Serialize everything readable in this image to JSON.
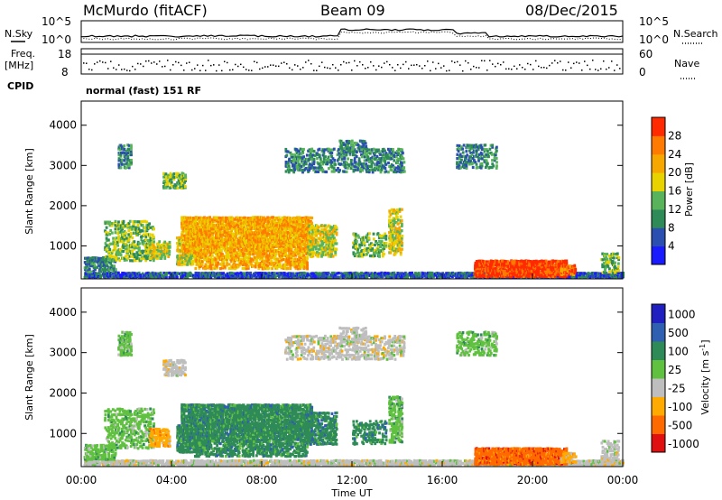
{
  "header": {
    "station": "McMurdo (fitACF)",
    "beam": "Beam 09",
    "date": "08/Dec/2015"
  },
  "strips": {
    "nsky_label": "N.Sky",
    "nsearch_label": "N.Search",
    "noise_ticks_left": [
      "10^5",
      "10^0"
    ],
    "noise_ticks_right": [
      "10^5",
      "10^0"
    ],
    "freq_label": "Freq.",
    "freq_unit": "[MHz]",
    "freq_ticks": [
      "18",
      "8"
    ],
    "nave_label": "Nave",
    "nave_ticks": [
      "60",
      "0"
    ],
    "cpid_label": "CPID",
    "cpid_text": "normal (fast) 151 RF"
  },
  "colors": {
    "power": [
      "#1a1aff",
      "#2a4fb0",
      "#2e8b57",
      "#58b35a",
      "#e8d200",
      "#f6a800",
      "#ff7a00",
      "#ff2a00"
    ],
    "velocity": [
      "#e01010",
      "#ff6a00",
      "#ffaa00",
      "#bebebe",
      "#60c040",
      "#2e8b57",
      "#2f5fb0",
      "#2020c0"
    ]
  },
  "chart_data": [
    {
      "type": "heatmap",
      "name": "power",
      "ylabel": "Slant Range [km]",
      "ylim": [
        180,
        4600
      ],
      "yticks": [
        "1000",
        "2000",
        "3000",
        "4000"
      ],
      "ytick_values": [
        1000,
        2000,
        3000,
        4000
      ],
      "xlim_hours": [
        0,
        24
      ],
      "colorbar_label": "Power [dB]",
      "colorbar_ticks": [
        "4",
        "8",
        "12",
        "16",
        "20",
        "24",
        "28"
      ],
      "colorbar_range": [
        0,
        32
      ]
    },
    {
      "type": "heatmap",
      "name": "velocity",
      "ylabel": "Slant Range [km]",
      "ylim": [
        180,
        4600
      ],
      "yticks": [
        "1000",
        "2000",
        "3000",
        "4000"
      ],
      "ytick_values": [
        1000,
        2000,
        3000,
        4000
      ],
      "xlim_hours": [
        0,
        24
      ],
      "colorbar_label": "Velocity [m s",
      "colorbar_sup": "-1",
      "colorbar_label_end": "]",
      "colorbar_ticks": [
        "1000",
        "500",
        "100",
        "25",
        "-25",
        "-100",
        "-500",
        "-1000"
      ]
    }
  ],
  "xaxis": {
    "ticks": [
      "00:00",
      "04:00",
      "08:00",
      "12:00",
      "16:00",
      "20:00",
      "00:00"
    ],
    "tick_hours": [
      0,
      4,
      8,
      12,
      16,
      20,
      24
    ],
    "label": "Time UT"
  }
}
